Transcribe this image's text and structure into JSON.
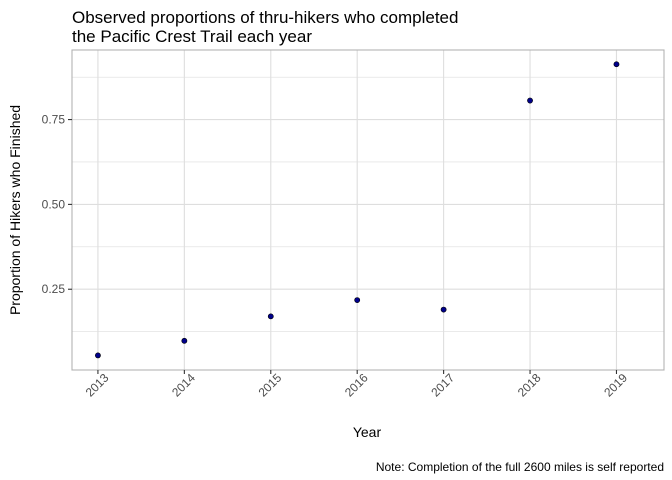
{
  "chart_data": {
    "type": "scatter",
    "title_lines": [
      "Observed proportions of thru-hikers who completed",
      "the Pacific Crest Trail each year"
    ],
    "xlabel": "Year",
    "ylabel": "Proportion of Hikers who Finished",
    "caption": "Note: Completion of the full 2600 miles is self reported",
    "x": [
      2013,
      2014,
      2015,
      2016,
      2017,
      2018,
      2019
    ],
    "y": [
      0.055,
      0.098,
      0.17,
      0.218,
      0.19,
      0.806,
      0.913
    ],
    "x_tick_labels": [
      "2013",
      "2014",
      "2015",
      "2016",
      "2017",
      "2018",
      "2019"
    ],
    "y_ticks": [
      0.25,
      0.5,
      0.75
    ],
    "y_tick_labels": [
      "0.25",
      "0.50",
      "0.75"
    ],
    "xlim": [
      2012.7,
      2019.55
    ],
    "ylim": [
      0.012,
      0.955
    ],
    "point_color": "#00008b",
    "grid": true,
    "panel_border_color": "#b3b3b3",
    "grid_color": "#dedede"
  }
}
